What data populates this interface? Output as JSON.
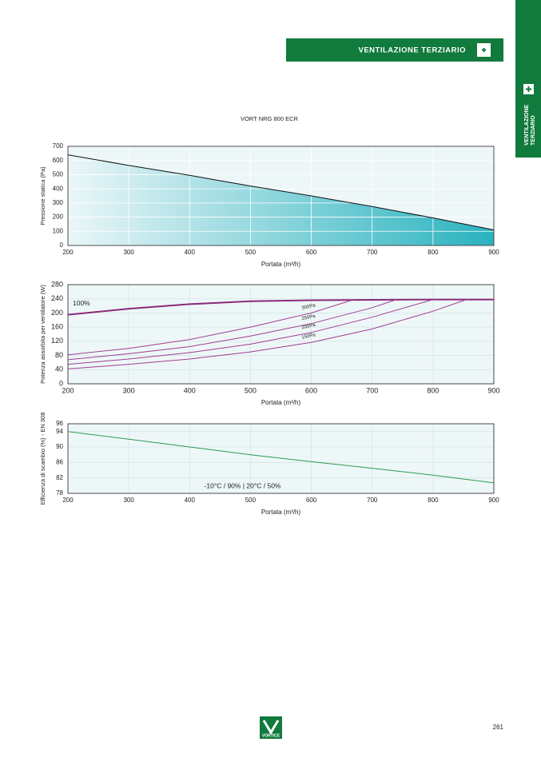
{
  "header": {
    "section": "VENTILAZIONE TERZIARIO",
    "tab": [
      "VENTILAZIONE",
      "TERZIARIO"
    ]
  },
  "title": "VORT NRG 800 ECR",
  "chart_data": [
    {
      "type": "area",
      "ylabel": "Pressione statica (Pa)",
      "xlabel": "Portata (m³/h)",
      "x": [
        200,
        300,
        400,
        500,
        600,
        700,
        800,
        900
      ],
      "series": [
        {
          "color": "#111111",
          "values": [
            640,
            565,
            495,
            420,
            350,
            275,
            195,
            110
          ]
        }
      ],
      "area_gradient": [
        "#eaf6f8",
        "#2ab3bf"
      ],
      "xlim": [
        200,
        900
      ],
      "xticks": [
        200,
        300,
        400,
        500,
        600,
        700,
        800,
        900
      ],
      "ylim": [
        0,
        700
      ],
      "yticks": [
        0,
        100,
        200,
        300,
        400,
        500,
        600,
        700
      ],
      "grid": true
    },
    {
      "type": "line",
      "ylabel": "Potenza assorbita per ventilatore (W)",
      "xlabel": "Portata (m³/h)",
      "x": [
        200,
        300,
        400,
        500,
        600,
        700,
        800,
        900
      ],
      "series": [
        {
          "name": "100%",
          "color": "#8a2a7c",
          "width": 2,
          "values": [
            195,
            212,
            225,
            233,
            236,
            237,
            238,
            238
          ]
        },
        {
          "name": "300Pa",
          "color": "#a03d92",
          "width": 1,
          "x": [
            200,
            300,
            400,
            500,
            600,
            670
          ],
          "values": [
            82,
            100,
            125,
            160,
            200,
            238
          ]
        },
        {
          "name": "250Pa",
          "color": "#a03d92",
          "width": 1,
          "x": [
            200,
            300,
            400,
            500,
            600,
            700,
            740
          ],
          "values": [
            68,
            85,
            105,
            135,
            170,
            215,
            238
          ]
        },
        {
          "name": "200Pa",
          "color": "#a03d92",
          "width": 1,
          "x": [
            200,
            300,
            400,
            500,
            600,
            700,
            800
          ],
          "values": [
            55,
            70,
            88,
            112,
            145,
            188,
            238
          ]
        },
        {
          "name": "150Pa",
          "color": "#a03d92",
          "width": 1,
          "x": [
            200,
            300,
            400,
            500,
            600,
            700,
            800,
            855
          ],
          "values": [
            42,
            55,
            70,
            90,
            117,
            155,
            205,
            238
          ]
        }
      ],
      "xlim": [
        200,
        900
      ],
      "xticks": [
        200,
        300,
        400,
        500,
        600,
        700,
        800,
        900
      ],
      "ylim": [
        0,
        280
      ],
      "yticks": [
        0,
        40,
        80,
        120,
        160,
        200,
        240,
        280
      ],
      "grid": true
    },
    {
      "type": "line",
      "ylabel": "Efficienza di scambio (%) - EN 308",
      "xlabel": "Portata (m³/h)",
      "annotation": "-10°C / 90% | 20°C / 50%",
      "x": [
        200,
        300,
        400,
        500,
        600,
        700,
        800,
        900
      ],
      "series": [
        {
          "color": "#2e9a4f",
          "width": 1,
          "values": [
            94,
            92,
            90,
            88,
            86.2,
            84.5,
            82.7,
            80.7
          ]
        }
      ],
      "xlim": [
        200,
        900
      ],
      "xticks": [
        200,
        300,
        400,
        500,
        600,
        700,
        800,
        900
      ],
      "ylim": [
        78,
        96
      ],
      "yticks": [
        78,
        82,
        86,
        90,
        94,
        96
      ],
      "grid": true
    }
  ],
  "footer": {
    "logo": "VORTICE",
    "page": "261"
  }
}
